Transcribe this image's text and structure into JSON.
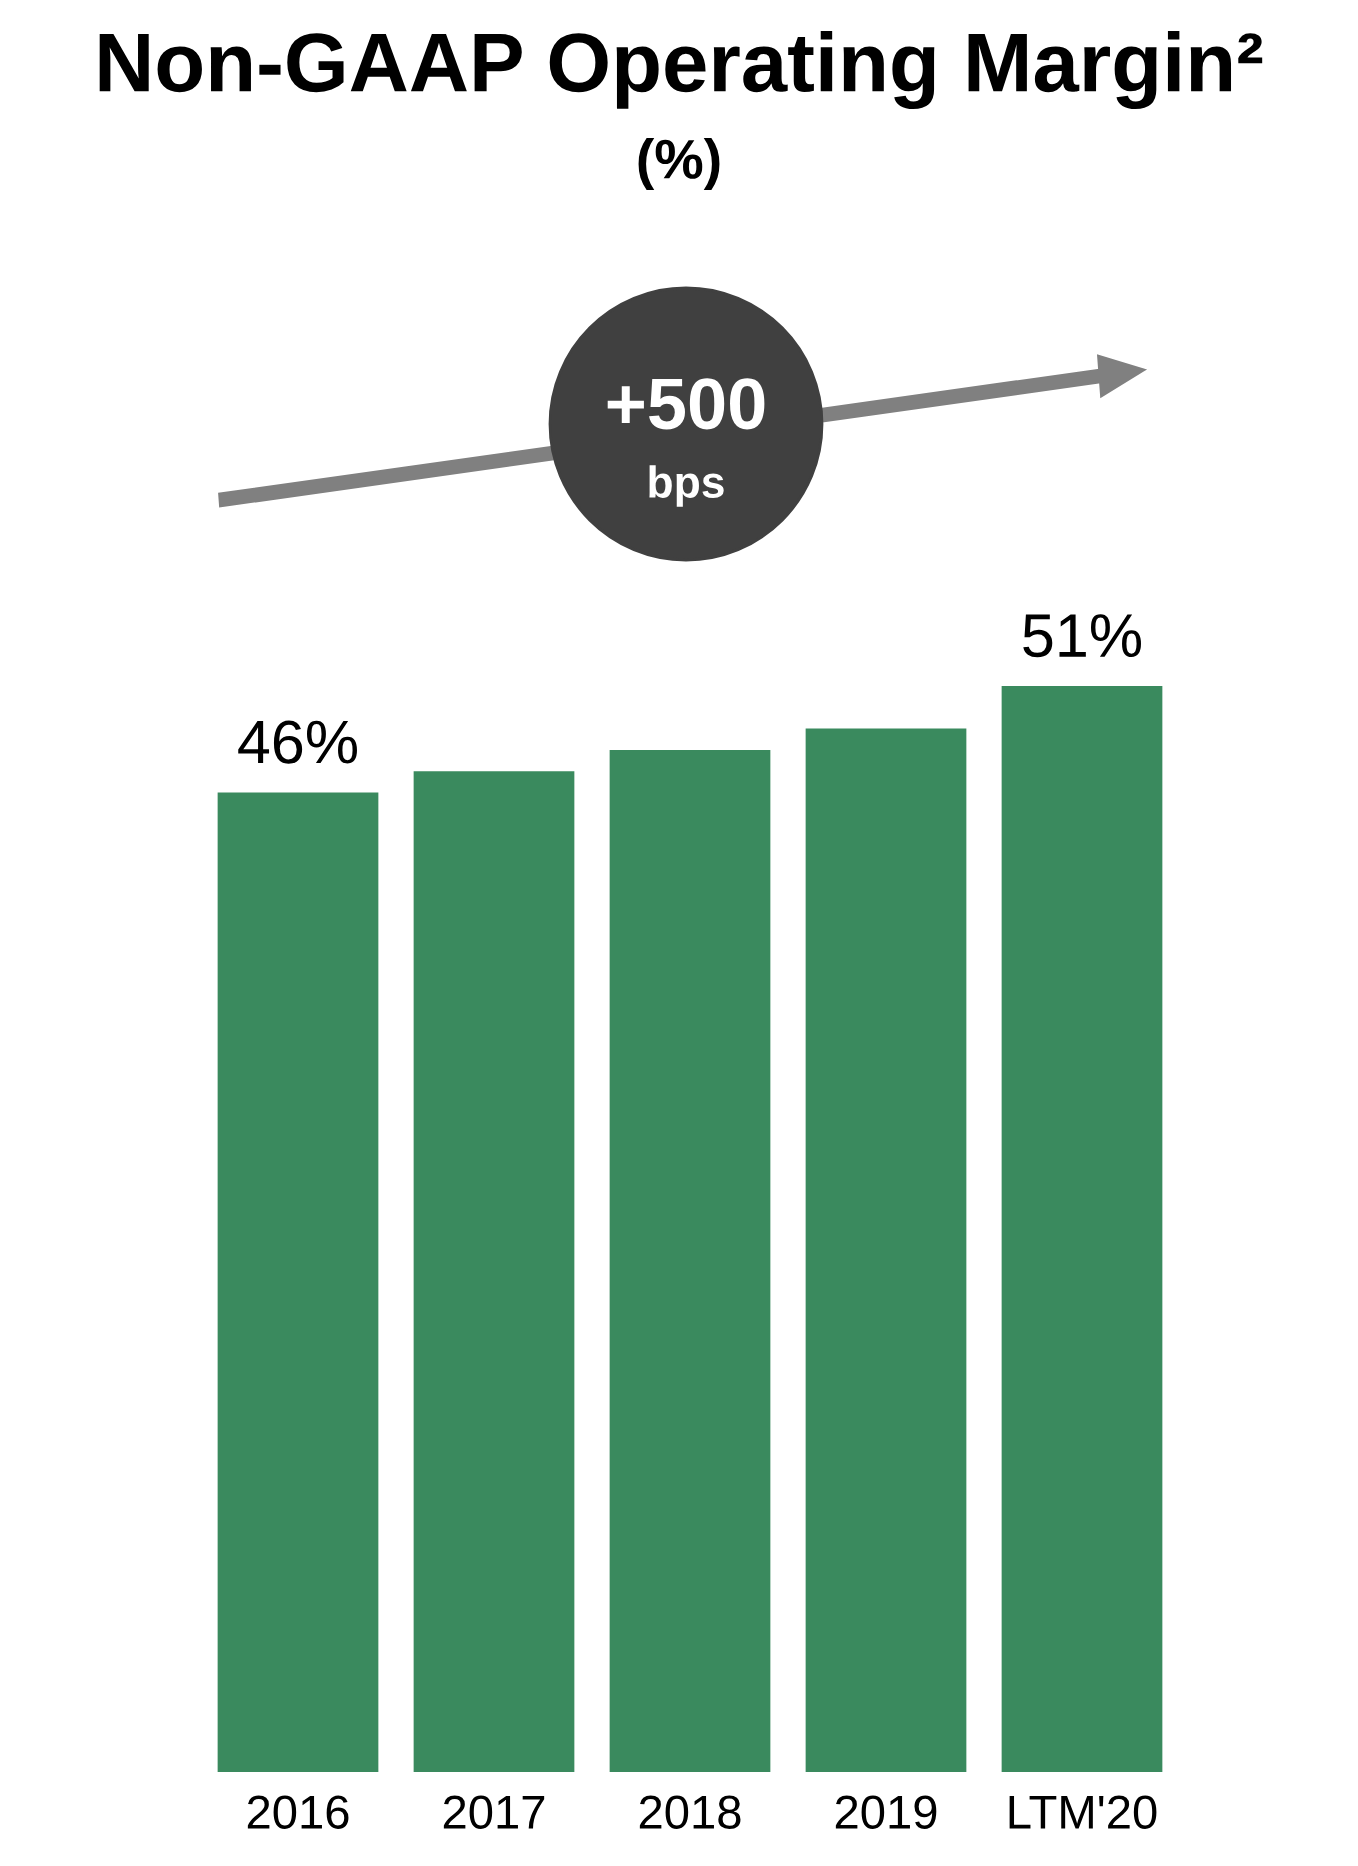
{
  "chart_data": {
    "type": "bar",
    "title": "Non-GAAP Operating Margin²",
    "subtitle": "(%)",
    "categories": [
      "2016",
      "2017",
      "2018",
      "2019",
      "LTM'20"
    ],
    "values": [
      46,
      47,
      48,
      49,
      51
    ],
    "value_labels": [
      "46%",
      null,
      null,
      null,
      "51%"
    ],
    "color": "#3a8a5e",
    "annotations": [
      "+500",
      "bps"
    ]
  }
}
